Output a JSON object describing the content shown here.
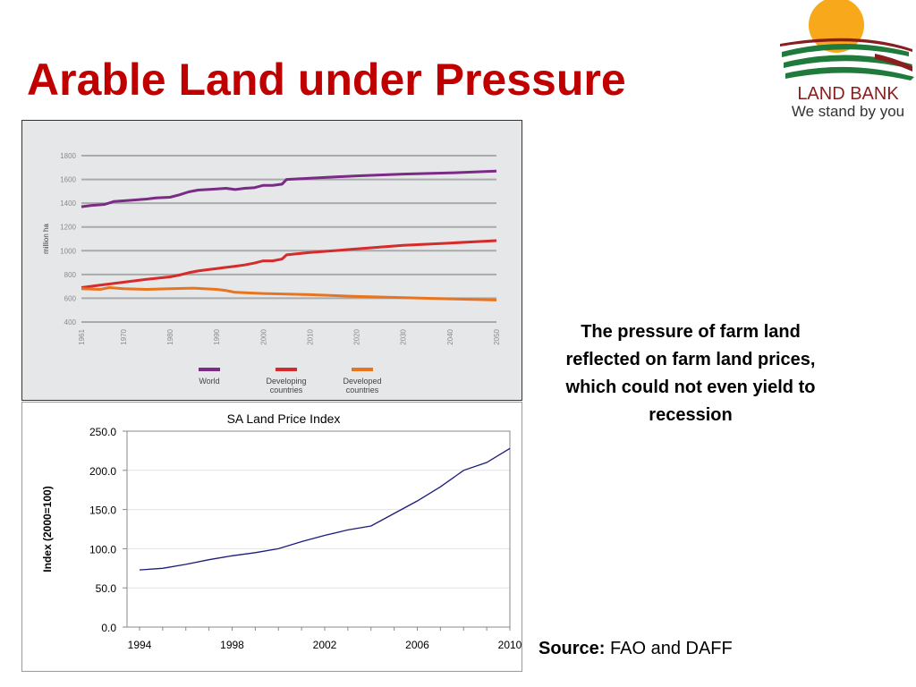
{
  "slide": {
    "title": "Arable Land under Pressure",
    "description": "The pressure of farm land reflected on farm land prices, which could not even yield to recession",
    "source_label": "Source:",
    "source_text": "FAO and DAFF"
  },
  "logo": {
    "name": "LAND BANK",
    "tagline": "We stand by you"
  },
  "colors": {
    "title": "#c00000",
    "world": "#7b2b85",
    "developing": "#d52b2b",
    "developed": "#e8741f",
    "index_line": "#1b1b7a"
  },
  "chart_data": [
    {
      "type": "line",
      "title": "",
      "xlabel": "",
      "ylabel": "million ha",
      "ylim": [
        400,
        1800
      ],
      "xlim": [
        1961,
        2050
      ],
      "yticks": [
        400,
        600,
        800,
        1000,
        1200,
        1400,
        1600,
        1800
      ],
      "xticks": [
        "1961",
        "1970",
        "1980",
        "1990",
        "2000",
        "2010",
        "2020",
        "2030",
        "2040",
        "2050"
      ],
      "grid": true,
      "legend": "bottom",
      "series": [
        {
          "name": "World",
          "color": "#7b2b85",
          "x": [
            1961,
            1963,
            1966,
            1968,
            1970,
            1972,
            1975,
            1977,
            1980,
            1982,
            1984,
            1986,
            1988,
            1990,
            1992,
            1994,
            1996,
            1998,
            2000,
            2002,
            2004,
            2005,
            2010,
            2020,
            2030,
            2040,
            2050
          ],
          "y": [
            1370,
            1380,
            1390,
            1415,
            1420,
            1425,
            1435,
            1445,
            1450,
            1470,
            1495,
            1510,
            1515,
            1520,
            1525,
            1515,
            1525,
            1530,
            1550,
            1550,
            1560,
            1600,
            1610,
            1630,
            1645,
            1655,
            1670
          ]
        },
        {
          "name": "Developing countries",
          "color": "#d52b2b",
          "x": [
            1961,
            1965,
            1970,
            1975,
            1980,
            1982,
            1984,
            1986,
            1988,
            1990,
            1992,
            1994,
            1996,
            1998,
            2000,
            2002,
            2004,
            2005,
            2010,
            2020,
            2030,
            2040,
            2050
          ],
          "y": [
            690,
            710,
            735,
            760,
            780,
            795,
            815,
            830,
            840,
            850,
            860,
            870,
            880,
            895,
            915,
            915,
            930,
            965,
            985,
            1015,
            1045,
            1065,
            1085
          ]
        },
        {
          "name": "Developed countries",
          "color": "#e8741f",
          "x": [
            1961,
            1965,
            1967,
            1970,
            1975,
            1980,
            1985,
            1990,
            1992,
            1994,
            2000,
            2005,
            2010,
            2020,
            2030,
            2040,
            2050
          ],
          "y": [
            680,
            675,
            690,
            680,
            675,
            680,
            685,
            675,
            665,
            650,
            640,
            635,
            630,
            615,
            605,
            595,
            585
          ]
        }
      ]
    },
    {
      "type": "line",
      "title": "SA Land Price Index",
      "xlabel": "",
      "ylabel": "Index (2000=100)",
      "ylim": [
        0,
        250
      ],
      "xlim": [
        1994,
        2010
      ],
      "yticks": [
        "0.0",
        "50.0",
        "100.0",
        "150.0",
        "200.0",
        "250.0"
      ],
      "xticks": [
        "1994",
        "1998",
        "2002",
        "2006",
        "2010"
      ],
      "grid": true,
      "series": [
        {
          "name": "",
          "color": "#1b1b7a",
          "x": [
            1994,
            1995,
            1996,
            1997,
            1998,
            1999,
            2000,
            2001,
            2002,
            2003,
            2004,
            2005,
            2006,
            2007,
            2008,
            2009,
            2010
          ],
          "y": [
            73,
            75,
            80,
            86,
            91,
            95,
            100,
            109,
            117,
            124,
            129,
            145,
            161,
            179,
            200,
            210,
            228
          ]
        }
      ]
    }
  ]
}
